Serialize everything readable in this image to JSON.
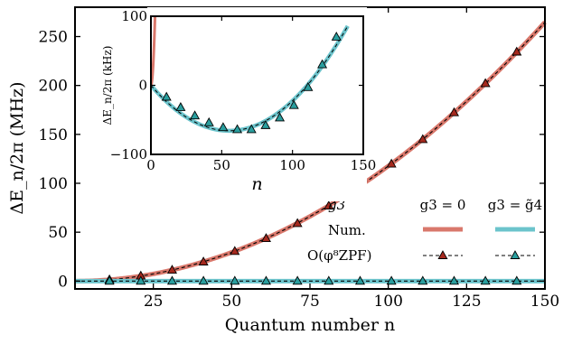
{
  "chart_data": [
    {
      "type": "line",
      "xlabel": "Quantum number n",
      "ylabel": "ΔE_n/2π (MHz)",
      "xlim": [
        0,
        150
      ],
      "ylim": [
        -8,
        280
      ],
      "xticks": [
        "25",
        "50",
        "75",
        "100",
        "125",
        "150"
      ],
      "yticks": [
        "0",
        "50",
        "100",
        "150",
        "200",
        "250"
      ],
      "legend": {
        "placement": "bottom-right",
        "header": "g3",
        "columns": [
          "g3 = 0",
          "g3 = g̃4"
        ],
        "rows": [
          "Num.",
          "O(φ⁸ZPF)"
        ]
      },
      "x": [
        1,
        11,
        21,
        31,
        41,
        51,
        61,
        71,
        81,
        91,
        101,
        111,
        121,
        131,
        141
      ],
      "series": [
        {
          "name": "g3 = 0",
          "color": "#d9786c",
          "marker": "triangle",
          "values": [
            0.012,
            1.45,
            5.29,
            11.3,
            19.7,
            30.5,
            43.6,
            59.0,
            76.9,
            97.1,
            119.8,
            144.8,
            172.3,
            202.1,
            234.3
          ]
        },
        {
          "name": "g3 = g̃4",
          "color": "#6cc4cc",
          "marker": "triangle",
          "values": [
            0,
            0,
            0,
            0,
            0,
            0,
            0,
            0,
            0,
            0,
            0,
            0,
            0,
            0,
            0
          ]
        }
      ]
    },
    {
      "type": "line",
      "xlabel": "n",
      "ylabel": "ΔE_n/2π (kHz)",
      "xlim": [
        0,
        150
      ],
      "ylim": [
        -100,
        100
      ],
      "xticks": [
        "0",
        "50",
        "100",
        "150"
      ],
      "yticks": [
        "−100",
        "0",
        "100"
      ],
      "x": [
        1,
        11,
        21,
        31,
        41,
        51,
        61,
        71,
        81,
        91,
        101,
        111,
        121,
        131
      ],
      "series": [
        {
          "name": "g3 = g̃4",
          "color": "#6cc4cc",
          "marker": "triangle",
          "values": [
            -1,
            -17,
            -32,
            -44,
            -54,
            -61,
            -64,
            -64,
            -58,
            -47,
            -29,
            -3,
            30,
            70
          ]
        }
      ]
    }
  ]
}
